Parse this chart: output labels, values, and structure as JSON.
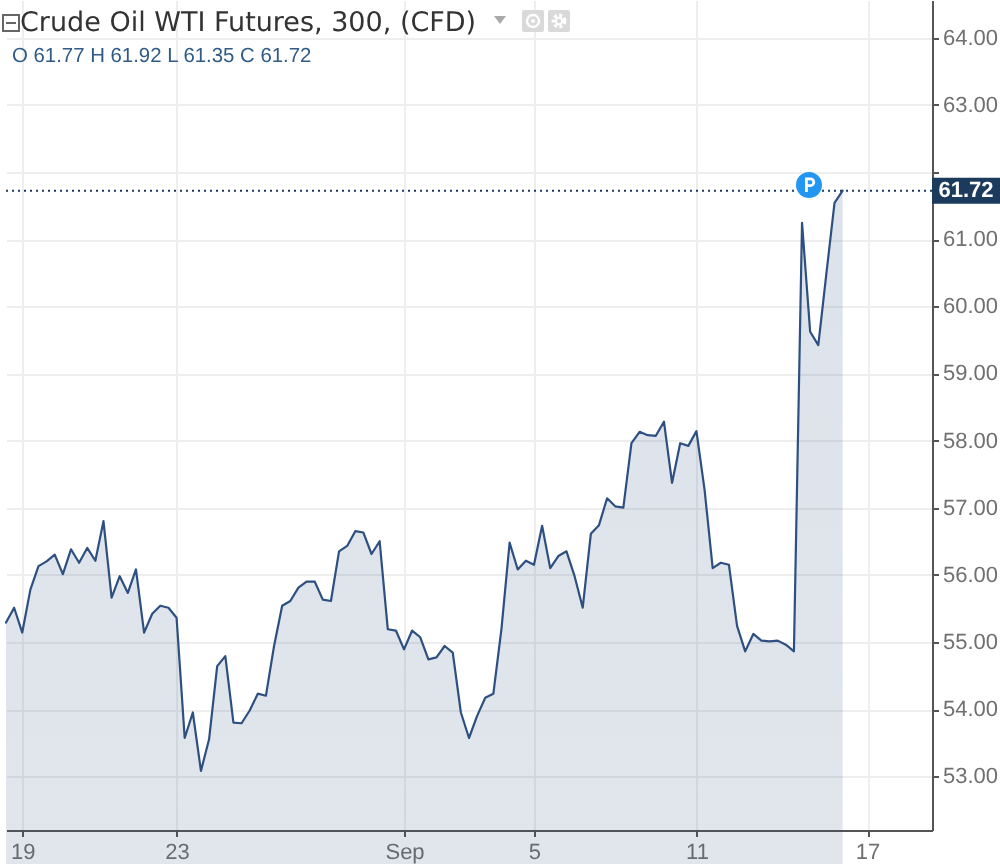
{
  "chart_data": {
    "type": "area",
    "title": "Crude Oil WTI Futures, 300, (CFD)",
    "subtitle": "O 61.77 H 61.92 L 61.35 C 61.72",
    "categories": [
      null,
      null,
      "19",
      null,
      null,
      null,
      null,
      null,
      null,
      null,
      null,
      null,
      null,
      null,
      null,
      null,
      null,
      null,
      null,
      null,
      null,
      "23",
      null,
      null,
      null,
      null,
      null,
      null,
      null,
      null,
      null,
      null,
      null,
      null,
      null,
      null,
      null,
      null,
      null,
      null,
      null,
      null,
      null,
      null,
      null,
      null,
      null,
      null,
      null,
      "Sep",
      null,
      null,
      null,
      null,
      null,
      null,
      null,
      null,
      null,
      null,
      null,
      null,
      null,
      null,
      null,
      "5",
      null,
      null,
      null,
      null,
      null,
      null,
      null,
      null,
      null,
      null,
      null,
      null,
      null,
      null,
      null,
      null,
      null,
      null,
      null,
      "11",
      null,
      null,
      null,
      null,
      null,
      null,
      null,
      null,
      null,
      null,
      null,
      null,
      null,
      null,
      null,
      null,
      null,
      null,
      null,
      null,
      "17",
      null,
      null,
      null,
      null,
      null,
      null,
      null,
      null
    ],
    "values": [
      55.29,
      55.51,
      55.14,
      55.78,
      56.13,
      56.2,
      56.3,
      56.01,
      56.38,
      56.18,
      56.4,
      56.21,
      56.8,
      55.66,
      55.98,
      55.73,
      56.08,
      55.14,
      55.42,
      55.54,
      55.51,
      55.36,
      53.57,
      53.95,
      53.08,
      53.55,
      54.64,
      54.79,
      53.8,
      53.79,
      53.98,
      54.23,
      54.2,
      54.94,
      55.54,
      55.61,
      55.81,
      55.9,
      55.9,
      55.63,
      55.61,
      56.35,
      56.43,
      56.65,
      56.63,
      56.31,
      56.5,
      55.19,
      55.17,
      54.89,
      55.17,
      55.07,
      54.74,
      54.77,
      54.94,
      54.84,
      53.95,
      53.57,
      53.9,
      54.17,
      54.23,
      55.2,
      56.48,
      56.08,
      56.21,
      56.15,
      56.73,
      56.1,
      56.28,
      56.35,
      55.98,
      55.51,
      56.61,
      56.74,
      57.14,
      57.02,
      57.0,
      57.96,
      58.13,
      58.08,
      58.07,
      58.28,
      57.37,
      57.96,
      57.92,
      58.14,
      57.27,
      56.1,
      56.18,
      56.15,
      55.24,
      54.86,
      55.12,
      55.02,
      55.01,
      55.02,
      54.96,
      54.86,
      61.24,
      59.62,
      59.42,
      60.49,
      61.54,
      61.72,
      null,
      null,
      null,
      null,
      null,
      null,
      null,
      null,
      null,
      null,
      null
    ],
    "color": "#2d5080",
    "ylim": [
      52.2,
      64.56
    ],
    "yticks": [
      {
        "value": 53,
        "label": "53.00"
      },
      {
        "value": 54,
        "label": "54.00"
      },
      {
        "value": 55,
        "label": "55.00"
      },
      {
        "value": 56,
        "label": "56.00"
      },
      {
        "value": 57,
        "label": "57.00"
      },
      {
        "value": 58,
        "label": "58.00"
      },
      {
        "value": 59,
        "label": "59.00"
      },
      {
        "value": 60,
        "label": "60.00"
      },
      {
        "value": 61,
        "label": "61.00"
      },
      {
        "value": 62,
        "label": null
      },
      {
        "value": 63,
        "label": "63.00"
      },
      {
        "value": 64,
        "label": "64.00"
      }
    ],
    "grid": true,
    "ref_lines": [
      {
        "axis": "y",
        "value": 61.72,
        "label": "61.72",
        "color": "#1b3a5c",
        "line_style": "dotted"
      }
    ]
  }
}
